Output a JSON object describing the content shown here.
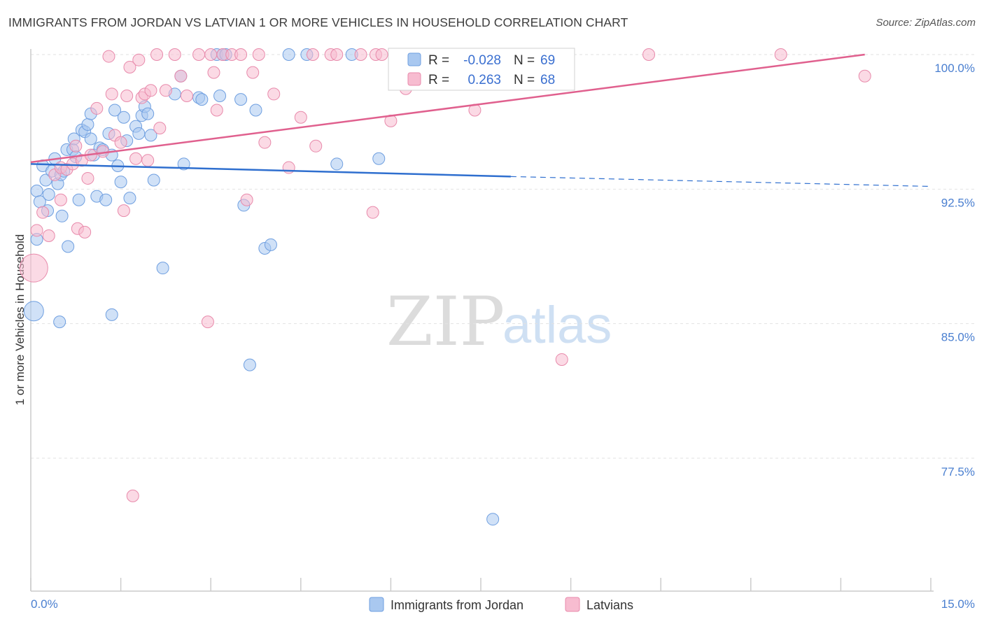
{
  "header": {
    "title": "IMMIGRANTS FROM JORDAN VS LATVIAN 1 OR MORE VEHICLES IN HOUSEHOLD CORRELATION CHART",
    "source": "Source: ZipAtlas.com"
  },
  "watermark": {
    "zip": "ZIP",
    "atlas": "atlas"
  },
  "chart_data": {
    "type": "scatter",
    "title": "IMMIGRANTS FROM JORDAN VS LATVIAN 1 OR MORE VEHICLES IN HOUSEHOLD CORRELATION CHART",
    "ylabel": "1 or more Vehicles in Household",
    "xlabel": "",
    "x_unit": "%",
    "xlim": [
      0,
      15
    ],
    "ylim": [
      70.5,
      101.5
    ],
    "x_tick_labels": [
      {
        "value": 0,
        "label": "0.0%"
      },
      {
        "value": 15,
        "label": "15.0%"
      }
    ],
    "y_tick_labels": [
      {
        "value": 100,
        "label": "100.0%"
      },
      {
        "value": 92.5,
        "label": "92.5%"
      },
      {
        "value": 85,
        "label": "85.0%"
      },
      {
        "value": 77.5,
        "label": "77.5%"
      }
    ],
    "grid": "horizontal dashed",
    "legend_position": "bottom-center",
    "colors": {
      "jordan_fill": "#a9c8f0",
      "jordan_stroke": "#6f9fe0",
      "jordan_line": "#2f6fcf",
      "latvian_fill": "#f7bcd0",
      "latvian_stroke": "#e88aab",
      "latvian_line": "#e0608e",
      "tick_text": "#4a7fd0"
    },
    "stats": [
      {
        "r_label": "R =",
        "r_value": "-0.028",
        "n_label": "N =",
        "n_value": "69"
      },
      {
        "r_label": "R =",
        "r_value": " 0.263",
        "n_label": "N =",
        "n_value": "68"
      }
    ],
    "series": [
      {
        "name": "Immigrants from Jordan",
        "trend": {
          "x0": 0.0,
          "y0": 93.9,
          "x1": 8.0,
          "y1": 93.2,
          "dash_to_x": 15.0,
          "dash_to_y": 92.65
        },
        "points": [
          [
            0.05,
            85.7
          ],
          [
            0.1,
            89.7
          ],
          [
            0.1,
            92.4
          ],
          [
            0.15,
            91.8
          ],
          [
            0.2,
            93.8
          ],
          [
            0.25,
            93.0
          ],
          [
            0.28,
            91.3
          ],
          [
            0.3,
            92.2
          ],
          [
            0.35,
            93.5
          ],
          [
            0.4,
            94.2
          ],
          [
            0.45,
            92.8
          ],
          [
            0.5,
            93.3
          ],
          [
            0.48,
            85.1
          ],
          [
            0.52,
            91.0
          ],
          [
            0.55,
            93.5
          ],
          [
            0.6,
            94.7
          ],
          [
            0.62,
            89.3
          ],
          [
            0.7,
            94.7
          ],
          [
            0.72,
            95.3
          ],
          [
            0.75,
            94.3
          ],
          [
            0.8,
            91.9
          ],
          [
            0.85,
            95.8
          ],
          [
            0.9,
            95.7
          ],
          [
            0.95,
            96.1
          ],
          [
            1.0,
            95.3
          ],
          [
            1.0,
            96.7
          ],
          [
            1.05,
            94.4
          ],
          [
            1.1,
            92.1
          ],
          [
            1.15,
            94.8
          ],
          [
            1.2,
            94.7
          ],
          [
            1.25,
            91.9
          ],
          [
            1.3,
            95.6
          ],
          [
            1.35,
            94.4
          ],
          [
            1.35,
            85.5
          ],
          [
            1.4,
            96.9
          ],
          [
            1.45,
            93.8
          ],
          [
            1.5,
            92.9
          ],
          [
            1.55,
            96.5
          ],
          [
            1.6,
            95.2
          ],
          [
            1.65,
            92.0
          ],
          [
            1.75,
            96.0
          ],
          [
            1.8,
            95.6
          ],
          [
            1.85,
            96.6
          ],
          [
            1.9,
            97.1
          ],
          [
            1.95,
            96.7
          ],
          [
            2.0,
            95.5
          ],
          [
            2.05,
            93.0
          ],
          [
            2.2,
            88.1
          ],
          [
            2.4,
            97.8
          ],
          [
            2.5,
            98.8
          ],
          [
            2.55,
            93.9
          ],
          [
            2.8,
            97.6
          ],
          [
            2.85,
            97.5
          ],
          [
            3.1,
            100.0
          ],
          [
            3.15,
            97.7
          ],
          [
            3.2,
            100.0
          ],
          [
            3.25,
            100.0
          ],
          [
            3.5,
            97.5
          ],
          [
            3.55,
            91.6
          ],
          [
            3.65,
            82.7
          ],
          [
            3.75,
            96.9
          ],
          [
            3.9,
            89.2
          ],
          [
            4.0,
            89.4
          ],
          [
            4.3,
            100.0
          ],
          [
            4.6,
            100.0
          ],
          [
            5.1,
            93.9
          ],
          [
            5.35,
            100.0
          ],
          [
            5.8,
            94.2
          ],
          [
            7.7,
            74.1
          ]
        ]
      },
      {
        "name": "Latvians",
        "trend": {
          "x0": 0.0,
          "y0": 94.0,
          "x1": 13.9,
          "y1": 100.0
        },
        "points": [
          [
            0.05,
            88.1
          ],
          [
            0.1,
            90.2
          ],
          [
            0.2,
            91.2
          ],
          [
            0.3,
            89.9
          ],
          [
            0.4,
            93.3
          ],
          [
            0.5,
            93.7
          ],
          [
            0.5,
            91.9
          ],
          [
            0.6,
            93.6
          ],
          [
            0.7,
            93.9
          ],
          [
            0.75,
            94.9
          ],
          [
            0.78,
            90.3
          ],
          [
            0.85,
            94.1
          ],
          [
            0.9,
            90.1
          ],
          [
            0.95,
            93.1
          ],
          [
            1.0,
            94.4
          ],
          [
            1.1,
            97.0
          ],
          [
            1.2,
            94.6
          ],
          [
            1.3,
            99.9
          ],
          [
            1.35,
            97.8
          ],
          [
            1.4,
            95.5
          ],
          [
            1.5,
            95.1
          ],
          [
            1.55,
            91.3
          ],
          [
            1.6,
            97.7
          ],
          [
            1.65,
            99.3
          ],
          [
            1.7,
            75.4
          ],
          [
            1.75,
            94.2
          ],
          [
            1.8,
            99.7
          ],
          [
            1.85,
            97.6
          ],
          [
            1.9,
            97.8
          ],
          [
            1.95,
            94.1
          ],
          [
            2.0,
            98.0
          ],
          [
            2.1,
            100.0
          ],
          [
            2.15,
            95.9
          ],
          [
            2.25,
            98.0
          ],
          [
            2.4,
            100.0
          ],
          [
            2.5,
            98.8
          ],
          [
            2.6,
            97.7
          ],
          [
            2.8,
            100.0
          ],
          [
            2.95,
            85.1
          ],
          [
            3.0,
            100.0
          ],
          [
            3.05,
            99.0
          ],
          [
            3.1,
            96.9
          ],
          [
            3.2,
            100.0
          ],
          [
            3.35,
            100.0
          ],
          [
            3.5,
            100.0
          ],
          [
            3.6,
            91.9
          ],
          [
            3.7,
            99.0
          ],
          [
            3.8,
            100.0
          ],
          [
            3.9,
            95.1
          ],
          [
            4.05,
            97.8
          ],
          [
            4.3,
            93.7
          ],
          [
            4.5,
            96.5
          ],
          [
            4.7,
            100.0
          ],
          [
            4.75,
            94.9
          ],
          [
            5.0,
            100.0
          ],
          [
            5.1,
            100.0
          ],
          [
            5.5,
            100.0
          ],
          [
            5.7,
            91.2
          ],
          [
            5.75,
            100.0
          ],
          [
            5.85,
            100.0
          ],
          [
            6.0,
            96.3
          ],
          [
            6.25,
            98.1
          ],
          [
            7.4,
            96.9
          ],
          [
            8.4,
            100.0
          ],
          [
            8.85,
            83.0
          ],
          [
            10.3,
            100.0
          ],
          [
            12.5,
            100.0
          ],
          [
            13.9,
            98.8
          ]
        ]
      }
    ]
  }
}
